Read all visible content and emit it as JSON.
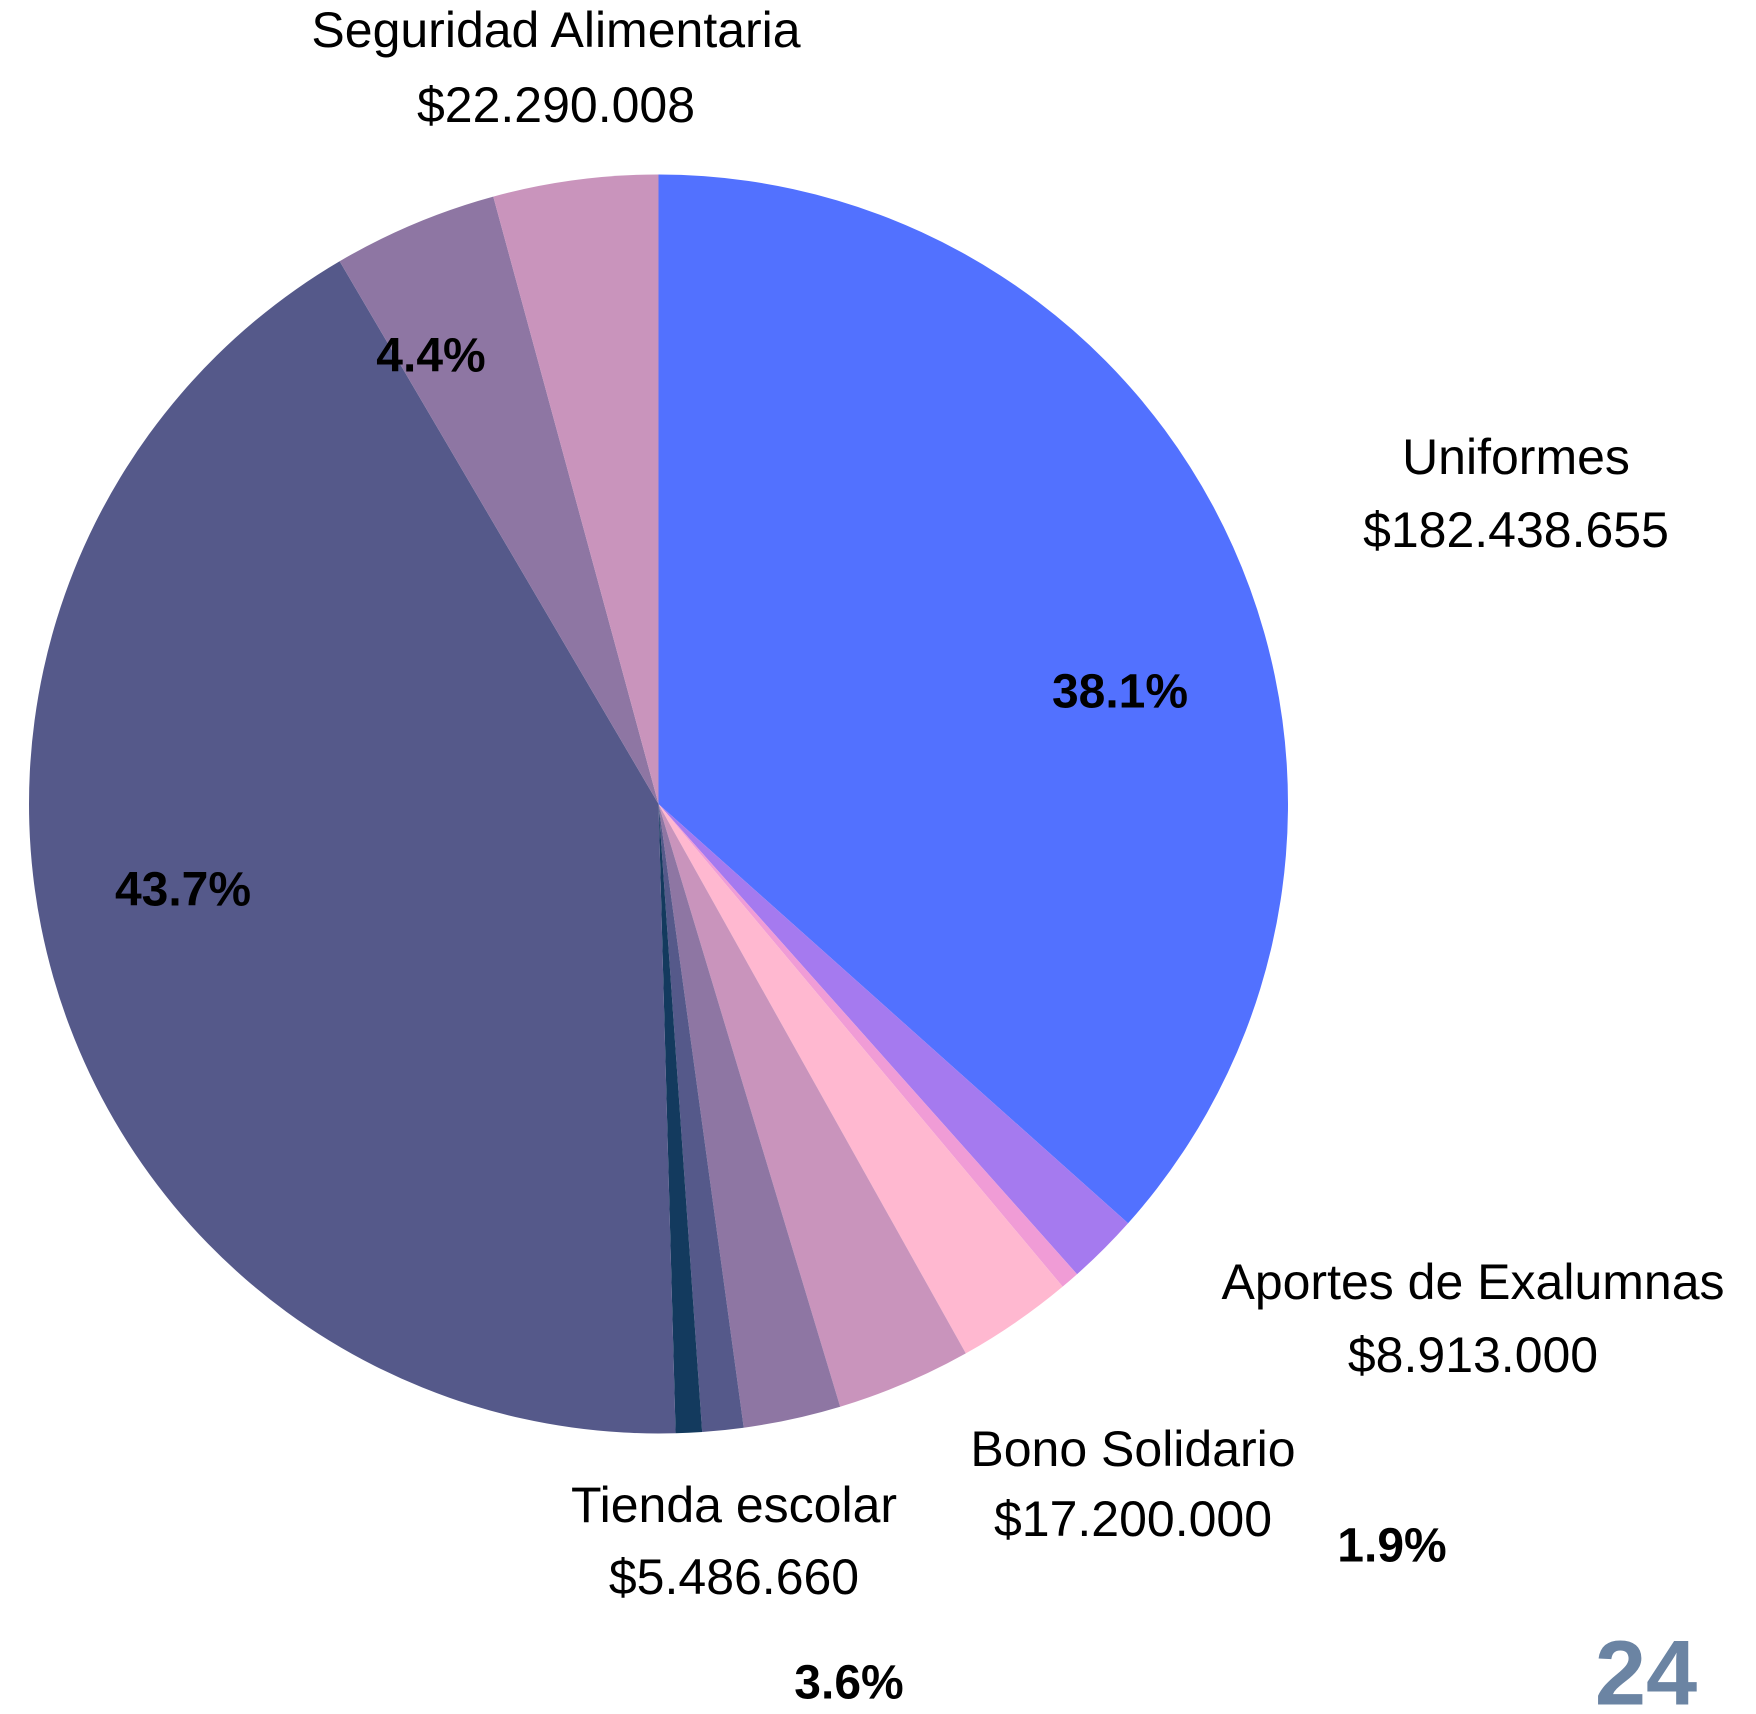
{
  "chart_data": {
    "type": "pie",
    "values": [
      38.1,
      1.9,
      0.5,
      3.1,
      3.6,
      2.6,
      1.1,
      0.7,
      43.7,
      4.4,
      4.4
    ],
    "value_labels": [
      "38.1%",
      "1.9%",
      null,
      null,
      "3.6%",
      null,
      null,
      null,
      "43.7%",
      "4.4%",
      null
    ],
    "colors": [
      "#5271ff",
      "#a57aef",
      "#f09cd6",
      "#ffb8d0",
      "#c994bc",
      "#8e76a3",
      "#55598a",
      "#133a5e",
      "#55598a",
      "#8e76a3",
      "#c994bc"
    ],
    "annotations": [
      {
        "text": "Seguridad Alimentaria",
        "amount": "$22.290.008"
      },
      {
        "text": "Uniformes",
        "amount": "$182.438.655"
      },
      {
        "text": "Aportes de Exalumnas",
        "amount": "$8.913.000"
      },
      {
        "text": "Bono Solidario",
        "amount": "$17.200.000"
      },
      {
        "text": "Tienda escolar",
        "amount": "$5.486.660"
      }
    ],
    "page_number": "24"
  }
}
